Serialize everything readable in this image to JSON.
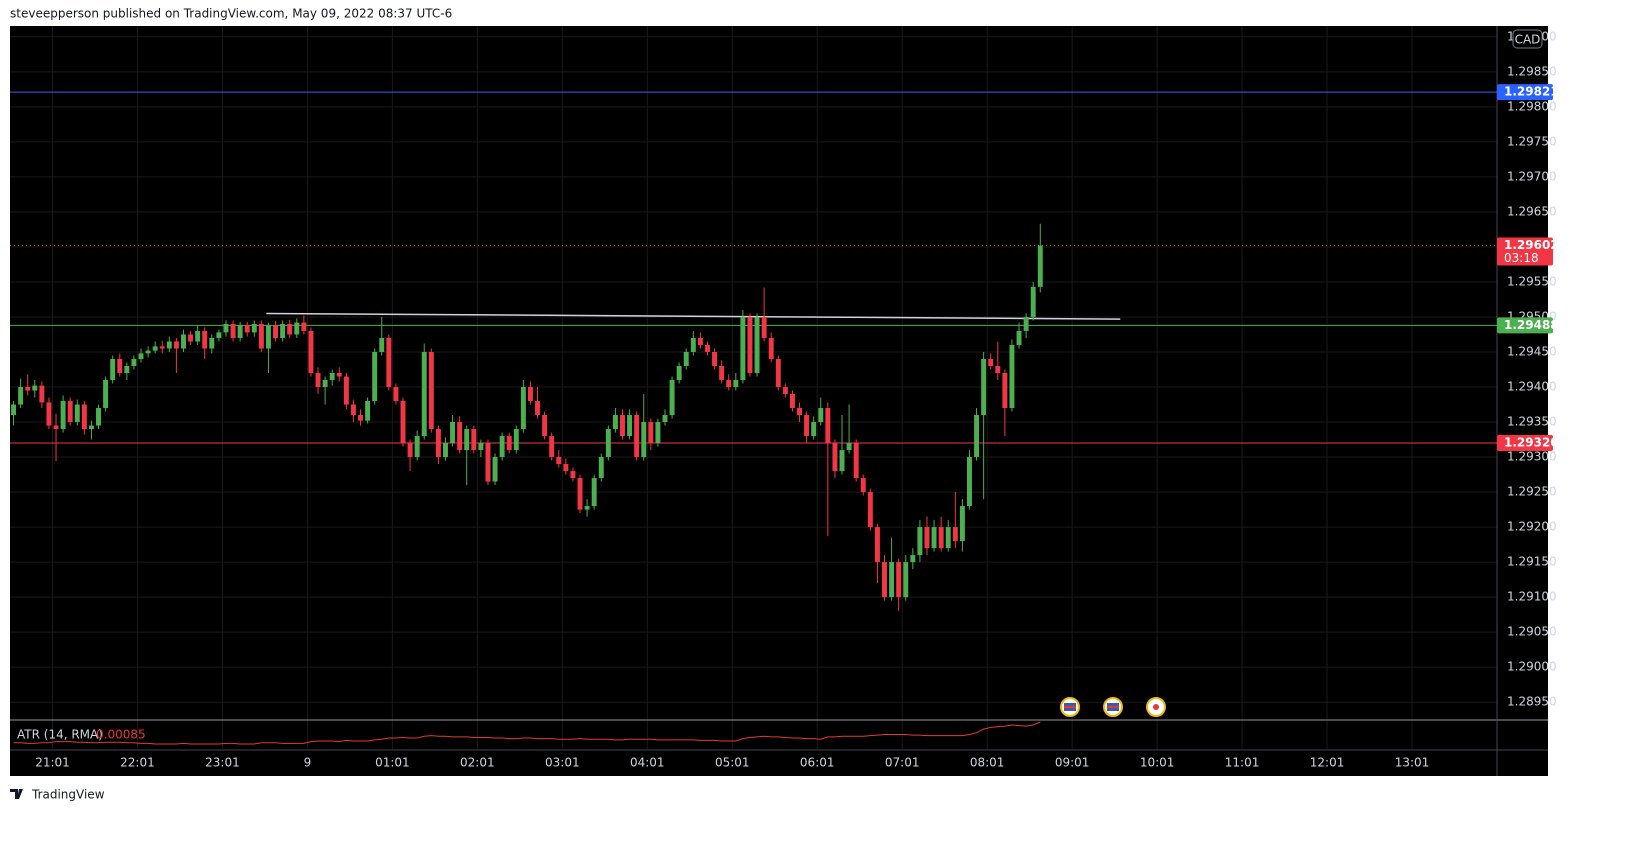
{
  "header": "steveepperson published on TradingView.com, May 09, 2022 08:37 UTC-6",
  "footer": "TradingView",
  "chart_data": {
    "type": "candlestick",
    "currency": "CAD",
    "up_color": "#4caf50",
    "down_color": "#f23645",
    "grid": true,
    "xlim": [
      -0.5,
      209.5
    ],
    "xticks": [
      {
        "value": 5.5,
        "label": "21:01"
      },
      {
        "value": 17.5,
        "label": "22:01"
      },
      {
        "value": 29.5,
        "label": "23:01"
      },
      {
        "value": 41.5,
        "label": "9"
      },
      {
        "value": 53.5,
        "label": "01:01"
      },
      {
        "value": 65.5,
        "label": "02:01"
      },
      {
        "value": 77.5,
        "label": "03:01"
      },
      {
        "value": 89.5,
        "label": "04:01"
      },
      {
        "value": 101.5,
        "label": "05:01"
      },
      {
        "value": 113.5,
        "label": "06:01"
      },
      {
        "value": 125.5,
        "label": "07:01"
      },
      {
        "value": 137.5,
        "label": "08:01"
      },
      {
        "value": 149.5,
        "label": "09:01"
      },
      {
        "value": 161.5,
        "label": "10:01"
      },
      {
        "value": 173.5,
        "label": "11:01"
      },
      {
        "value": 185.5,
        "label": "12:01"
      },
      {
        "value": 197.5,
        "label": "13:01"
      }
    ],
    "ylim": [
      1.28926,
      1.29914
    ],
    "yticks": [
      {
        "value": 1.299,
        "label": "1.29900"
      },
      {
        "value": 1.2985,
        "label": "1.29850"
      },
      {
        "value": 1.298,
        "label": "1.29800"
      },
      {
        "value": 1.2975,
        "label": "1.29750"
      },
      {
        "value": 1.297,
        "label": "1.29700"
      },
      {
        "value": 1.2965,
        "label": "1.29650"
      },
      {
        "value": 1.296,
        "label": "1.29600"
      },
      {
        "value": 1.2955,
        "label": "1.29550"
      },
      {
        "value": 1.295,
        "label": "1.29500"
      },
      {
        "value": 1.2945,
        "label": "1.29450"
      },
      {
        "value": 1.294,
        "label": "1.29400"
      },
      {
        "value": 1.2935,
        "label": "1.29350"
      },
      {
        "value": 1.293,
        "label": "1.29300"
      },
      {
        "value": 1.2925,
        "label": "1.29250"
      },
      {
        "value": 1.292,
        "label": "1.29200"
      },
      {
        "value": 1.2915,
        "label": "1.29150"
      },
      {
        "value": 1.291,
        "label": "1.29100"
      },
      {
        "value": 1.2905,
        "label": "1.29050"
      },
      {
        "value": 1.29,
        "label": "1.29000"
      },
      {
        "value": 1.2895,
        "label": "1.28950"
      }
    ],
    "levels": [
      {
        "price": 1.29821,
        "color": "#2962ff",
        "style": "solid"
      },
      {
        "price": 1.29602,
        "color": "#f23645",
        "style": "dotted",
        "countdown": "03:18"
      },
      {
        "price": 1.29488,
        "color": "#4caf50",
        "style": "solid"
      },
      {
        "price": 1.2932,
        "label": "1.29320",
        "color": "#f23645",
        "style": "solid"
      }
    ],
    "trendline": {
      "x": [
        35.7,
        156.3
      ],
      "y": [
        1.29505,
        1.29497
      ],
      "color": "#d1d4dc"
    },
    "ohlc": [
      [
        1.2936,
        1.2938,
        1.29345,
        1.29375
      ],
      [
        1.29375,
        1.29412,
        1.2937,
        1.294
      ],
      [
        1.294,
        1.29418,
        1.29388,
        1.29395
      ],
      [
        1.29395,
        1.2941,
        1.29385,
        1.29402
      ],
      [
        1.29402,
        1.29408,
        1.2937,
        1.29378
      ],
      [
        1.29378,
        1.29385,
        1.2934,
        1.29345
      ],
      [
        1.29345,
        1.29362,
        1.29294,
        1.2934
      ],
      [
        1.2934,
        1.29388,
        1.29335,
        1.2938
      ],
      [
        1.2938,
        1.29385,
        1.29345,
        1.2935
      ],
      [
        1.2935,
        1.29382,
        1.29345,
        1.29375
      ],
      [
        1.29375,
        1.2938,
        1.29332,
        1.2934
      ],
      [
        1.2934,
        1.29352,
        1.29325,
        1.29345
      ],
      [
        1.29345,
        1.29375,
        1.2934,
        1.2937
      ],
      [
        1.2937,
        1.29415,
        1.29365,
        1.2941
      ],
      [
        1.2941,
        1.29445,
        1.29405,
        1.2944
      ],
      [
        1.2944,
        1.29448,
        1.29415,
        1.2942
      ],
      [
        1.2942,
        1.29435,
        1.2941,
        1.2943
      ],
      [
        1.2943,
        1.29445,
        1.29425,
        1.2944
      ],
      [
        1.2944,
        1.29455,
        1.29435,
        1.29448
      ],
      [
        1.29448,
        1.29458,
        1.29442,
        1.29452
      ],
      [
        1.29452,
        1.29465,
        1.29448,
        1.29458
      ],
      [
        1.29458,
        1.29466,
        1.29448,
        1.29455
      ],
      [
        1.29455,
        1.29472,
        1.2945,
        1.29465
      ],
      [
        1.29465,
        1.2947,
        1.2942,
        1.29455
      ],
      [
        1.29455,
        1.29482,
        1.2945,
        1.29475
      ],
      [
        1.29475,
        1.2948,
        1.2946,
        1.29465
      ],
      [
        1.29465,
        1.29488,
        1.2946,
        1.2948
      ],
      [
        1.2948,
        1.29485,
        1.2944,
        1.29455
      ],
      [
        1.29455,
        1.29475,
        1.29448,
        1.2947
      ],
      [
        1.2947,
        1.29482,
        1.29465,
        1.29478
      ],
      [
        1.29478,
        1.29495,
        1.29472,
        1.2949
      ],
      [
        1.2949,
        1.29495,
        1.29465,
        1.2947
      ],
      [
        1.2947,
        1.29493,
        1.29465,
        1.29488
      ],
      [
        1.29488,
        1.29493,
        1.29472,
        1.29478
      ],
      [
        1.29478,
        1.29495,
        1.29472,
        1.2949
      ],
      [
        1.2949,
        1.29495,
        1.2945,
        1.29455
      ],
      [
        1.29455,
        1.29492,
        1.2942,
        1.29488
      ],
      [
        1.29488,
        1.29494,
        1.29465,
        1.2947
      ],
      [
        1.2947,
        1.29495,
        1.29465,
        1.2949
      ],
      [
        1.2949,
        1.29496,
        1.2947,
        1.29475
      ],
      [
        1.29475,
        1.29498,
        1.2947,
        1.29492
      ],
      [
        1.29492,
        1.29502,
        1.29475,
        1.2948
      ],
      [
        1.2948,
        1.29485,
        1.29415,
        1.2942
      ],
      [
        1.2942,
        1.29428,
        1.2939,
        1.294
      ],
      [
        1.294,
        1.29415,
        1.29375,
        1.2941
      ],
      [
        1.2941,
        1.29425,
        1.29402,
        1.2942
      ],
      [
        1.2942,
        1.29428,
        1.29408,
        1.29415
      ],
      [
        1.29415,
        1.2942,
        1.29368,
        1.29375
      ],
      [
        1.29375,
        1.29382,
        1.2935,
        1.2936
      ],
      [
        1.2936,
        1.29368,
        1.29345,
        1.29352
      ],
      [
        1.29352,
        1.29385,
        1.29348,
        1.2938
      ],
      [
        1.2938,
        1.29455,
        1.29375,
        1.2945
      ],
      [
        1.2945,
        1.295,
        1.29445,
        1.2947
      ],
      [
        1.2947,
        1.29475,
        1.29395,
        1.294
      ],
      [
        1.294,
        1.29405,
        1.29375,
        1.2938
      ],
      [
        1.2938,
        1.29385,
        1.29315,
        1.2932
      ],
      [
        1.2932,
        1.29325,
        1.2928,
        1.293
      ],
      [
        1.293,
        1.29338,
        1.29295,
        1.2933
      ],
      [
        1.2933,
        1.29462,
        1.29325,
        1.2945
      ],
      [
        1.2945,
        1.29455,
        1.29335,
        1.2934
      ],
      [
        1.2934,
        1.29345,
        1.2929,
        1.293
      ],
      [
        1.293,
        1.29328,
        1.29295,
        1.2932
      ],
      [
        1.2932,
        1.2936,
        1.29315,
        1.2935
      ],
      [
        1.2935,
        1.29358,
        1.29305,
        1.2931
      ],
      [
        1.2931,
        1.29345,
        1.2926,
        1.2934
      ],
      [
        1.2934,
        1.29345,
        1.29305,
        1.2931
      ],
      [
        1.2931,
        1.29325,
        1.293,
        1.2932
      ],
      [
        1.2932,
        1.29325,
        1.2926,
        1.29265
      ],
      [
        1.29265,
        1.29305,
        1.2926,
        1.293
      ],
      [
        1.293,
        1.29335,
        1.29295,
        1.2933
      ],
      [
        1.2933,
        1.29335,
        1.29305,
        1.2931
      ],
      [
        1.2931,
        1.29345,
        1.29305,
        1.2934
      ],
      [
        1.2934,
        1.2941,
        1.29335,
        1.294
      ],
      [
        1.294,
        1.29408,
        1.29375,
        1.2938
      ],
      [
        1.2938,
        1.294,
        1.29355,
        1.2936
      ],
      [
        1.2936,
        1.29365,
        1.29325,
        1.2933
      ],
      [
        1.2933,
        1.29335,
        1.29295,
        1.293
      ],
      [
        1.293,
        1.2931,
        1.29285,
        1.2929
      ],
      [
        1.2929,
        1.29298,
        1.29275,
        1.2928
      ],
      [
        1.2928,
        1.29285,
        1.29265,
        1.2927
      ],
      [
        1.2927,
        1.29275,
        1.2922,
        1.29225
      ],
      [
        1.29225,
        1.2924,
        1.29215,
        1.2923
      ],
      [
        1.2923,
        1.29275,
        1.29225,
        1.2927
      ],
      [
        1.2927,
        1.29305,
        1.29265,
        1.293
      ],
      [
        1.293,
        1.29345,
        1.29295,
        1.2934
      ],
      [
        1.2934,
        1.2937,
        1.29335,
        1.2936
      ],
      [
        1.2936,
        1.29368,
        1.29325,
        1.2933
      ],
      [
        1.2933,
        1.29368,
        1.29325,
        1.2936
      ],
      [
        1.2936,
        1.29365,
        1.29295,
        1.293
      ],
      [
        1.293,
        1.2939,
        1.29295,
        1.2935
      ],
      [
        1.2935,
        1.29355,
        1.2931,
        1.2932
      ],
      [
        1.2932,
        1.29355,
        1.29315,
        1.2935
      ],
      [
        1.2935,
        1.29368,
        1.29345,
        1.2936
      ],
      [
        1.2936,
        1.29415,
        1.29355,
        1.2941
      ],
      [
        1.2941,
        1.29435,
        1.29405,
        1.2943
      ],
      [
        1.2943,
        1.29455,
        1.29425,
        1.2945
      ],
      [
        1.2945,
        1.2948,
        1.29445,
        1.2947
      ],
      [
        1.2947,
        1.29478,
        1.29455,
        1.2946
      ],
      [
        1.2946,
        1.29465,
        1.29445,
        1.2945
      ],
      [
        1.2945,
        1.29455,
        1.29425,
        1.2943
      ],
      [
        1.2943,
        1.29438,
        1.29405,
        1.2941
      ],
      [
        1.2941,
        1.29418,
        1.29395,
        1.294
      ],
      [
        1.294,
        1.2942,
        1.29395,
        1.2941
      ],
      [
        1.2941,
        1.2951,
        1.29405,
        1.295
      ],
      [
        1.295,
        1.29505,
        1.29415,
        1.2942
      ],
      [
        1.2942,
        1.29505,
        1.29415,
        1.295
      ],
      [
        1.295,
        1.29542,
        1.29465,
        1.2947
      ],
      [
        1.2947,
        1.29478,
        1.29435,
        1.2944
      ],
      [
        1.2944,
        1.29445,
        1.29395,
        1.294
      ],
      [
        1.294,
        1.29405,
        1.29385,
        1.2939
      ],
      [
        1.2939,
        1.29395,
        1.29365,
        1.2937
      ],
      [
        1.2937,
        1.29378,
        1.2935,
        1.2936
      ],
      [
        1.2936,
        1.29365,
        1.2932,
        1.2933
      ],
      [
        1.2933,
        1.29358,
        1.29325,
        1.2935
      ],
      [
        1.2935,
        1.29385,
        1.29345,
        1.2937
      ],
      [
        1.2937,
        1.29378,
        1.29187,
        1.2932
      ],
      [
        1.2932,
        1.29325,
        1.2927,
        1.2928
      ],
      [
        1.2928,
        1.2936,
        1.29275,
        1.2931
      ],
      [
        1.2931,
        1.29375,
        1.29305,
        1.2932
      ],
      [
        1.2932,
        1.29325,
        1.29265,
        1.2927
      ],
      [
        1.2927,
        1.29275,
        1.29245,
        1.2925
      ],
      [
        1.2925,
        1.29255,
        1.29195,
        1.292
      ],
      [
        1.292,
        1.29205,
        1.2912,
        1.2915
      ],
      [
        1.2915,
        1.2916,
        1.29095,
        1.291
      ],
      [
        1.291,
        1.29185,
        1.29095,
        1.2915
      ],
      [
        1.2915,
        1.29155,
        1.2908,
        1.291
      ],
      [
        1.291,
        1.2916,
        1.29095,
        1.2915
      ],
      [
        1.2915,
        1.2917,
        1.2914,
        1.2916
      ],
      [
        1.2916,
        1.2921,
        1.2915,
        1.292
      ],
      [
        1.292,
        1.29215,
        1.2916,
        1.2917
      ],
      [
        1.2917,
        1.2921,
        1.29165,
        1.292
      ],
      [
        1.292,
        1.29215,
        1.29165,
        1.2917
      ],
      [
        1.2917,
        1.2921,
        1.29165,
        1.292
      ],
      [
        1.292,
        1.2925,
        1.2917,
        1.2918
      ],
      [
        1.2918,
        1.2924,
        1.29165,
        1.2923
      ],
      [
        1.2923,
        1.2931,
        1.29225,
        1.293
      ],
      [
        1.293,
        1.2937,
        1.29295,
        1.2936
      ],
      [
        1.2936,
        1.2945,
        1.2924,
        1.2944
      ],
      [
        1.2944,
        1.29448,
        1.29425,
        1.2943
      ],
      [
        1.2943,
        1.29465,
        1.2941,
        1.2942
      ],
      [
        1.2942,
        1.29425,
        1.2933,
        1.2937
      ],
      [
        1.2937,
        1.29468,
        1.29365,
        1.2946
      ],
      [
        1.2946,
        1.29492,
        1.29455,
        1.2948
      ],
      [
        1.2948,
        1.29505,
        1.2947,
        1.295
      ],
      [
        1.295,
        1.2955,
        1.29495,
        1.29543
      ],
      [
        1.29543,
        1.29633,
        1.29535,
        1.29602
      ]
    ],
    "atr": {
      "name": "ATR (14, RMA)",
      "color": "#e53935",
      "values": [
        0.0005,
        0.0005,
        0.00049,
        0.00049,
        0.0005,
        0.0005,
        0.00052,
        0.00052,
        0.00052,
        0.00051,
        0.00051,
        0.0005,
        0.0005,
        0.00051,
        0.00051,
        0.00051,
        0.0005,
        0.0005,
        0.00049,
        0.00049,
        0.00048,
        0.00048,
        0.00048,
        0.00048,
        0.00049,
        0.00048,
        0.00048,
        0.00048,
        0.00048,
        0.00048,
        0.00049,
        0.00049,
        0.00048,
        0.00048,
        0.00048,
        0.0005,
        0.0005,
        0.0005,
        0.00049,
        0.00049,
        0.00049,
        0.00049,
        0.00052,
        0.00053,
        0.00053,
        0.00053,
        0.00052,
        0.00054,
        0.00053,
        0.00053,
        0.00053,
        0.00055,
        0.00056,
        0.00058,
        0.00058,
        0.00059,
        0.00058,
        0.00058,
        0.00061,
        0.00062,
        0.00061,
        0.00061,
        0.0006,
        0.0006,
        0.0006,
        0.00059,
        0.00059,
        0.00059,
        0.00058,
        0.00058,
        0.00057,
        0.00057,
        0.00058,
        0.00058,
        0.00057,
        0.00057,
        0.00057,
        0.00056,
        0.00056,
        0.00056,
        0.00057,
        0.00056,
        0.00056,
        0.00056,
        0.00056,
        0.00055,
        0.00055,
        0.00056,
        0.00056,
        0.00056,
        0.00056,
        0.00055,
        0.00055,
        0.00055,
        0.00055,
        0.00055,
        0.00055,
        0.00054,
        0.00054,
        0.00054,
        0.00053,
        0.00053,
        0.00053,
        0.00057,
        0.00059,
        0.0006,
        0.00061,
        0.0006,
        0.0006,
        0.00059,
        0.00058,
        0.00058,
        0.00057,
        0.00057,
        0.00056,
        0.0006,
        0.0006,
        0.00061,
        0.00061,
        0.00061,
        0.00061,
        0.00062,
        0.00063,
        0.00064,
        0.00064,
        0.00064,
        0.00064,
        0.00063,
        0.00063,
        0.00062,
        0.00062,
        0.00062,
        0.00062,
        0.00062,
        0.00062,
        0.00064,
        0.00067,
        0.00073,
        0.00076,
        0.00077,
        0.00078,
        0.0008,
        0.00079,
        0.00078,
        0.0008,
        0.00085
      ]
    }
  }
}
